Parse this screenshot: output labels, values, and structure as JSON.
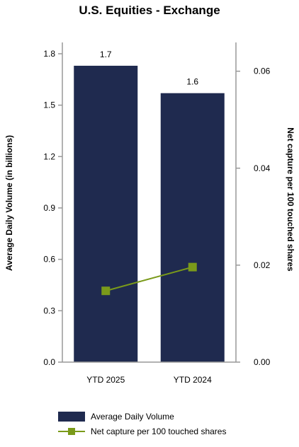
{
  "chart_data": {
    "type": "bar",
    "title": "U.S. Equities - Exchange",
    "categories": [
      "YTD 2025",
      "YTD 2024"
    ],
    "series": [
      {
        "name": "Average Daily Volume",
        "type": "bar",
        "axis": "left",
        "color": "#1f2a4f",
        "values": [
          1.73,
          1.57
        ],
        "data_labels": [
          "1.7",
          "1.6"
        ]
      },
      {
        "name": "Net capture per 100 touched shares",
        "type": "line",
        "axis": "right",
        "color": "#7a9a1a",
        "values": [
          0.0147,
          0.0196
        ]
      }
    ],
    "ylabel": "Average Daily Volume (in billions)",
    "ylim": [
      0,
      1.8
    ],
    "yticks": [
      "0.0",
      "0.3",
      "0.6",
      "0.9",
      "1.2",
      "1.5",
      "1.8"
    ],
    "y2label": "Net capture per 100 touched shares",
    "y2lim": [
      0,
      0.0636
    ],
    "y2ticks": [
      "0.00",
      "0.02",
      "0.04",
      "0.06"
    ],
    "grid": false,
    "legend_position": "bottom"
  }
}
